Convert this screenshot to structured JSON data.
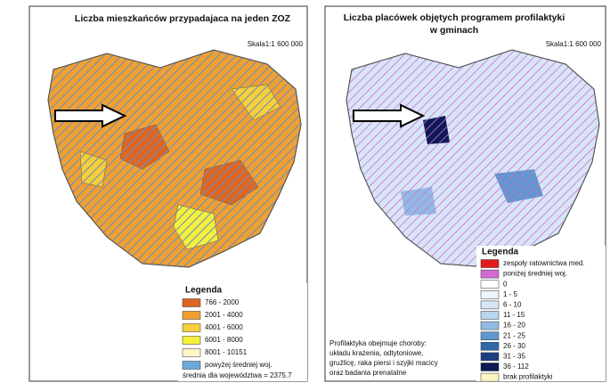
{
  "left": {
    "title": "Liczba mieszkańców przypadajaca na jeden ZOZ",
    "scale": "Skala1:1 600 000",
    "legend": {
      "title": "Legenda",
      "items": [
        {
          "label": "766 - 2000",
          "color": "#e0651f"
        },
        {
          "label": "2001 - 4000",
          "color": "#f0a032"
        },
        {
          "label": "4001 - 6000",
          "color": "#f7cf3a"
        },
        {
          "label": "6001 - 8000",
          "color": "#f5f03c"
        },
        {
          "label": "8001 - 10151",
          "color": "#fdf7c8"
        },
        {
          "label": "powyżej średniej woj.",
          "color": "#6fa8dc"
        }
      ]
    },
    "note": "średnia dla województwa = 2375.7"
  },
  "right": {
    "title": [
      "Liczba placówek objętych programem profilaktyki",
      "w gminach"
    ],
    "scale": "Skala1:1 600 000",
    "legend": {
      "title": "Legenda",
      "items": [
        {
          "label": "zespoły ratownictwa med.",
          "color": "#e31a1c"
        },
        {
          "label": "poniżej średniej woj.",
          "color": "#d36bd3"
        },
        {
          "label": "0",
          "color": "#ffffff"
        },
        {
          "label": "1 - 5",
          "color": "#eef4fb"
        },
        {
          "label": "6 - 10",
          "color": "#d6e6f6"
        },
        {
          "label": "11 - 15",
          "color": "#b9d4ef"
        },
        {
          "label": "16 - 20",
          "color": "#91bbe4"
        },
        {
          "label": "21 - 25",
          "color": "#5f97cf"
        },
        {
          "label": "26 - 30",
          "color": "#2f67a8"
        },
        {
          "label": "31 - 35",
          "color": "#1c3f80"
        },
        {
          "label": "36 - 112",
          "color": "#0c1a55"
        },
        {
          "label": "brak profilaktyki",
          "color": "#fff4c2"
        }
      ]
    },
    "note": [
      "Profilaktyka obejmuje choroby:",
      "układu krażenia, odtytoniowe,",
      "gruźlicę, raka piersi i szyjki macicy",
      "oraz badania prenatalne"
    ]
  }
}
